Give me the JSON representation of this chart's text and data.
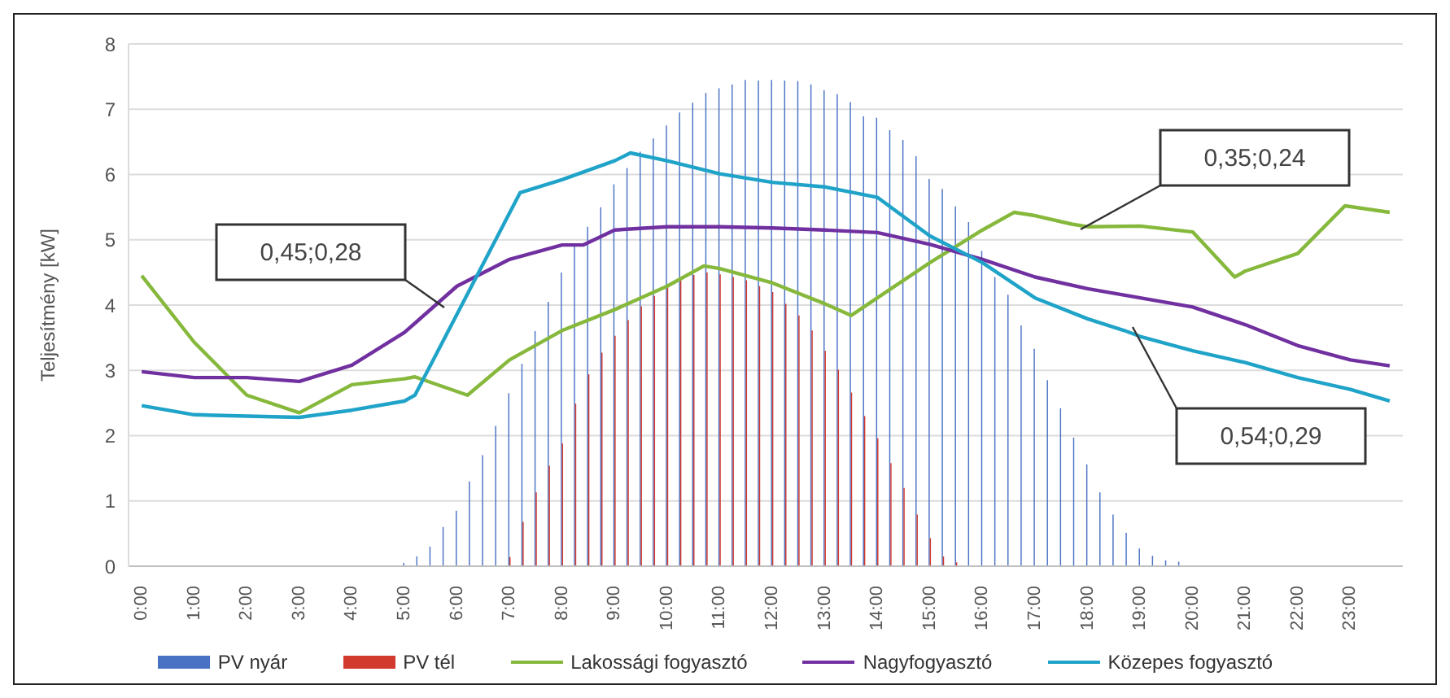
{
  "chart_data": {
    "type": "bar",
    "ylabel": "Teljesítmény [kW]",
    "x": [
      0,
      0.25,
      0.5,
      0.75,
      1,
      1.25,
      1.5,
      1.75,
      2,
      2.25,
      2.5,
      2.75,
      3,
      3.25,
      3.5,
      3.75,
      4,
      4.25,
      4.5,
      4.75,
      5,
      5.25,
      5.5,
      5.75,
      6,
      6.25,
      6.5,
      6.75,
      7,
      7.25,
      7.5,
      7.75,
      8,
      8.25,
      8.5,
      8.75,
      9,
      9.25,
      9.5,
      9.75,
      10,
      10.25,
      10.5,
      10.75,
      11,
      11.25,
      11.5,
      11.75,
      12,
      12.25,
      12.5,
      12.75,
      13,
      13.25,
      13.5,
      13.75,
      14,
      14.25,
      14.5,
      14.75,
      15,
      15.25,
      15.5,
      15.75,
      16,
      16.25,
      16.5,
      16.75,
      17,
      17.25,
      17.5,
      17.75,
      18,
      18.25,
      18.5,
      18.75,
      19,
      19.25,
      19.5,
      19.75,
      20,
      20.25,
      20.5,
      20.75,
      21,
      21.25,
      21.5,
      21.75,
      22,
      22.25,
      22.5,
      22.75,
      23,
      23.25,
      23.5,
      23.75
    ],
    "xlim": [
      -0.25,
      24
    ],
    "xticks": [
      {
        "value": 0,
        "label": "0:00"
      },
      {
        "value": 1,
        "label": "1:00"
      },
      {
        "value": 2,
        "label": "2:00"
      },
      {
        "value": 3,
        "label": "3:00"
      },
      {
        "value": 4,
        "label": "4:00"
      },
      {
        "value": 5,
        "label": "5:00"
      },
      {
        "value": 6,
        "label": "6:00"
      },
      {
        "value": 7,
        "label": "7:00"
      },
      {
        "value": 8,
        "label": "8:00"
      },
      {
        "value": 9,
        "label": "9:00"
      },
      {
        "value": 10,
        "label": "10:00"
      },
      {
        "value": 11,
        "label": "11:00"
      },
      {
        "value": 12,
        "label": "12:00"
      },
      {
        "value": 13,
        "label": "13:00"
      },
      {
        "value": 14,
        "label": "14:00"
      },
      {
        "value": 15,
        "label": "15:00"
      },
      {
        "value": 16,
        "label": "16:00"
      },
      {
        "value": 17,
        "label": "17:00"
      },
      {
        "value": 18,
        "label": "18:00"
      },
      {
        "value": 19,
        "label": "19:00"
      },
      {
        "value": 20,
        "label": "20:00"
      },
      {
        "value": 21,
        "label": "21:00"
      },
      {
        "value": 22,
        "label": "22:00"
      },
      {
        "value": 23,
        "label": "23:00"
      }
    ],
    "ylim": [
      0,
      8
    ],
    "yticks": [
      0,
      1,
      2,
      3,
      4,
      5,
      6,
      7,
      8
    ],
    "grid": "y",
    "legend": "bottom",
    "series": [
      {
        "name": "PV nyár",
        "color": "#4a72c4",
        "values": [
          0,
          0,
          0,
          0,
          0,
          0,
          0,
          0,
          0,
          0,
          0,
          0,
          0,
          0,
          0,
          0,
          0,
          0,
          0,
          0,
          0.05,
          0.15,
          0.3,
          0.6,
          0.85,
          1.3,
          1.7,
          2.15,
          2.65,
          3.1,
          3.6,
          4.05,
          4.5,
          4.9,
          5.2,
          5.5,
          5.85,
          6.1,
          6.35,
          6.55,
          6.75,
          6.95,
          7.1,
          7.25,
          7.32,
          7.38,
          7.45,
          7.44,
          7.45,
          7.44,
          7.43,
          7.38,
          7.29,
          7.23,
          7.11,
          6.89,
          6.87,
          6.68,
          6.53,
          6.28,
          5.93,
          5.78,
          5.51,
          5.27,
          4.83,
          4.43,
          4.16,
          3.69,
          3.33,
          2.85,
          2.42,
          1.97,
          1.56,
          1.13,
          0.79,
          0.51,
          0.27,
          0.16,
          0.09,
          0.07,
          0,
          0,
          0,
          0,
          0,
          0,
          0,
          0,
          0,
          0,
          0,
          0,
          0,
          0,
          0,
          0
        ]
      },
      {
        "name": "PV tél",
        "color": "#d23a2e",
        "values": [
          0,
          0,
          0,
          0,
          0,
          0,
          0,
          0,
          0,
          0,
          0,
          0,
          0,
          0,
          0,
          0,
          0,
          0,
          0,
          0,
          0,
          0,
          0,
          0,
          0,
          0,
          0,
          0,
          0.14,
          0.68,
          1.13,
          1.54,
          1.88,
          2.49,
          2.94,
          3.27,
          3.53,
          3.77,
          3.98,
          4.14,
          4.28,
          4.39,
          4.46,
          4.5,
          4.47,
          4.43,
          4.38,
          4.29,
          4.2,
          4.02,
          3.84,
          3.61,
          3.3,
          3.01,
          2.66,
          2.3,
          1.96,
          1.58,
          1.2,
          0.79,
          0.43,
          0.15,
          0.06,
          0,
          0,
          0,
          0,
          0,
          0,
          0,
          0,
          0,
          0,
          0,
          0,
          0,
          0,
          0,
          0,
          0,
          0,
          0,
          0,
          0,
          0,
          0,
          0,
          0,
          0,
          0,
          0,
          0,
          0,
          0,
          0,
          0
        ]
      },
      {
        "name": "Lakossági fogyasztó",
        "type": "line",
        "color": "#86b83c",
        "x": [
          0,
          1,
          2,
          3,
          4,
          5,
          5.2,
          6.2,
          7,
          8,
          9,
          10,
          10.7,
          11,
          12,
          13,
          13.5,
          14,
          15,
          16,
          16.6,
          17,
          17.7,
          18,
          19,
          20,
          20.8,
          21,
          22,
          22.9,
          23.75
        ],
        "values": [
          4.45,
          3.43,
          2.62,
          2.35,
          2.78,
          2.87,
          2.9,
          2.62,
          3.16,
          3.61,
          3.93,
          4.29,
          4.6,
          4.56,
          4.34,
          4.02,
          3.84,
          4.11,
          4.65,
          5.15,
          5.42,
          5.37,
          5.24,
          5.2,
          5.21,
          5.12,
          4.43,
          4.52,
          4.79,
          5.52,
          5.42
        ]
      },
      {
        "name": "Nagyfogyasztó",
        "type": "line",
        "color": "#7030a0",
        "x": [
          0,
          1,
          2,
          3,
          4,
          5,
          6,
          7,
          8,
          8.4,
          9,
          10,
          11,
          12,
          13,
          14,
          15,
          16,
          17,
          18,
          19,
          20,
          21,
          22,
          23,
          23.75
        ],
        "values": [
          2.98,
          2.89,
          2.89,
          2.83,
          3.08,
          3.58,
          4.29,
          4.7,
          4.92,
          4.92,
          5.15,
          5.2,
          5.2,
          5.18,
          5.15,
          5.11,
          4.93,
          4.7,
          4.43,
          4.25,
          4.11,
          3.97,
          3.7,
          3.38,
          3.16,
          3.07
        ]
      },
      {
        "name": "Közepes fogyasztó",
        "type": "line",
        "color": "#1fa3c8",
        "x": [
          0,
          1,
          2,
          3,
          4,
          5,
          5.2,
          7.2,
          8,
          9,
          9.3,
          10,
          11,
          12,
          13,
          14,
          15,
          16,
          17,
          18,
          18.7,
          19,
          20,
          21,
          22,
          23,
          23.75
        ],
        "values": [
          2.46,
          2.32,
          2.3,
          2.28,
          2.39,
          2.53,
          2.62,
          5.72,
          5.92,
          6.21,
          6.33,
          6.21,
          6.01,
          5.88,
          5.81,
          5.65,
          5.06,
          4.65,
          4.11,
          3.79,
          3.61,
          3.52,
          3.3,
          3.12,
          2.89,
          2.71,
          2.53
        ]
      }
    ],
    "annotations": [
      "0,45;0,28",
      "0,35;0,24",
      "0,54;0,29"
    ]
  }
}
